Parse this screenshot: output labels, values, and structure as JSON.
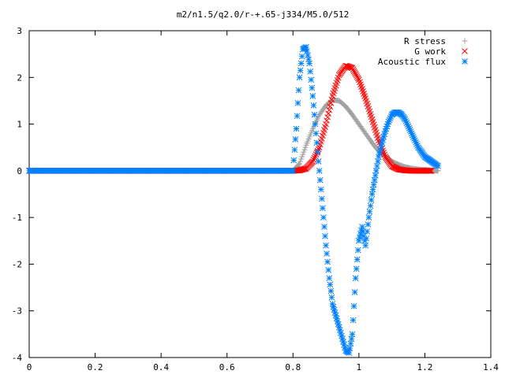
{
  "chart_data": {
    "type": "scatter",
    "title": "m2/n1.5/q2.0/r-+.65-j334/M5.0/512",
    "xlabel": "",
    "ylabel": "",
    "xlim": [
      0,
      1.4
    ],
    "ylim": [
      -4,
      3
    ],
    "x_ticks": [
      "0",
      "0.2",
      "0.4",
      "0.6",
      "0.8",
      "1",
      "1.2",
      "1.4"
    ],
    "y_ticks": [
      "3",
      "2",
      "1",
      "0",
      "-1",
      "-2",
      "-3",
      "-4"
    ],
    "legend_position": "top-right",
    "grid": false,
    "series": [
      {
        "name": "R stress",
        "marker": "+",
        "color": "#a0a0a0",
        "x": [
          0.0,
          0.2,
          0.4,
          0.6,
          0.8,
          0.82,
          0.84,
          0.86,
          0.88,
          0.9,
          0.92,
          0.94,
          0.96,
          0.98,
          1.0,
          1.02,
          1.04,
          1.06,
          1.08,
          1.1,
          1.12,
          1.14,
          1.16,
          1.18,
          1.2,
          1.22,
          1.24
        ],
        "y": [
          0.0,
          0.0,
          0.0,
          0.0,
          0.0,
          0.15,
          0.55,
          0.9,
          1.2,
          1.4,
          1.52,
          1.5,
          1.38,
          1.2,
          1.0,
          0.8,
          0.6,
          0.42,
          0.3,
          0.2,
          0.13,
          0.08,
          0.05,
          0.03,
          0.02,
          0.01,
          0.0
        ]
      },
      {
        "name": "G work",
        "marker": "x",
        "color": "#ff0000",
        "x": [
          0.0,
          0.2,
          0.4,
          0.6,
          0.8,
          0.82,
          0.84,
          0.86,
          0.88,
          0.9,
          0.92,
          0.94,
          0.96,
          0.98,
          1.0,
          1.02,
          1.04,
          1.06,
          1.08,
          1.1,
          1.12,
          1.14,
          1.16,
          1.18,
          1.2,
          1.22
        ],
        "y": [
          0.0,
          0.0,
          0.0,
          0.0,
          0.0,
          0.01,
          0.05,
          0.2,
          0.5,
          1.0,
          1.6,
          2.05,
          2.25,
          2.2,
          1.95,
          1.55,
          1.1,
          0.65,
          0.3,
          0.1,
          0.03,
          0.01,
          0.0,
          0.0,
          0.0,
          0.0
        ]
      },
      {
        "name": "Acoustic flux",
        "marker": "*",
        "color": "#0080ff",
        "x": [
          0.0,
          0.2,
          0.4,
          0.6,
          0.8,
          0.81,
          0.82,
          0.83,
          0.84,
          0.85,
          0.86,
          0.87,
          0.88,
          0.89,
          0.9,
          0.91,
          0.92,
          0.93,
          0.94,
          0.95,
          0.96,
          0.97,
          0.98,
          0.99,
          1.0,
          1.01,
          1.02,
          1.03,
          1.04,
          1.05,
          1.06,
          1.07,
          1.08,
          1.09,
          1.1,
          1.11,
          1.12,
          1.13,
          1.14,
          1.15,
          1.16,
          1.17,
          1.18,
          1.19,
          1.2,
          1.21,
          1.22,
          1.23,
          1.24
        ],
        "y": [
          0.0,
          0.0,
          0.0,
          0.0,
          0.0,
          0.9,
          2.0,
          2.6,
          2.65,
          2.3,
          1.6,
          0.8,
          0.0,
          -0.8,
          -1.6,
          -2.3,
          -2.85,
          -3.1,
          -3.35,
          -3.6,
          -3.85,
          -3.9,
          -3.5,
          -2.3,
          -1.5,
          -1.2,
          -1.6,
          -1.0,
          -0.5,
          -0.1,
          0.3,
          0.6,
          0.85,
          1.05,
          1.2,
          1.25,
          1.25,
          1.2,
          1.1,
          0.95,
          0.8,
          0.65,
          0.5,
          0.4,
          0.3,
          0.25,
          0.2,
          0.15,
          0.1
        ]
      }
    ]
  }
}
